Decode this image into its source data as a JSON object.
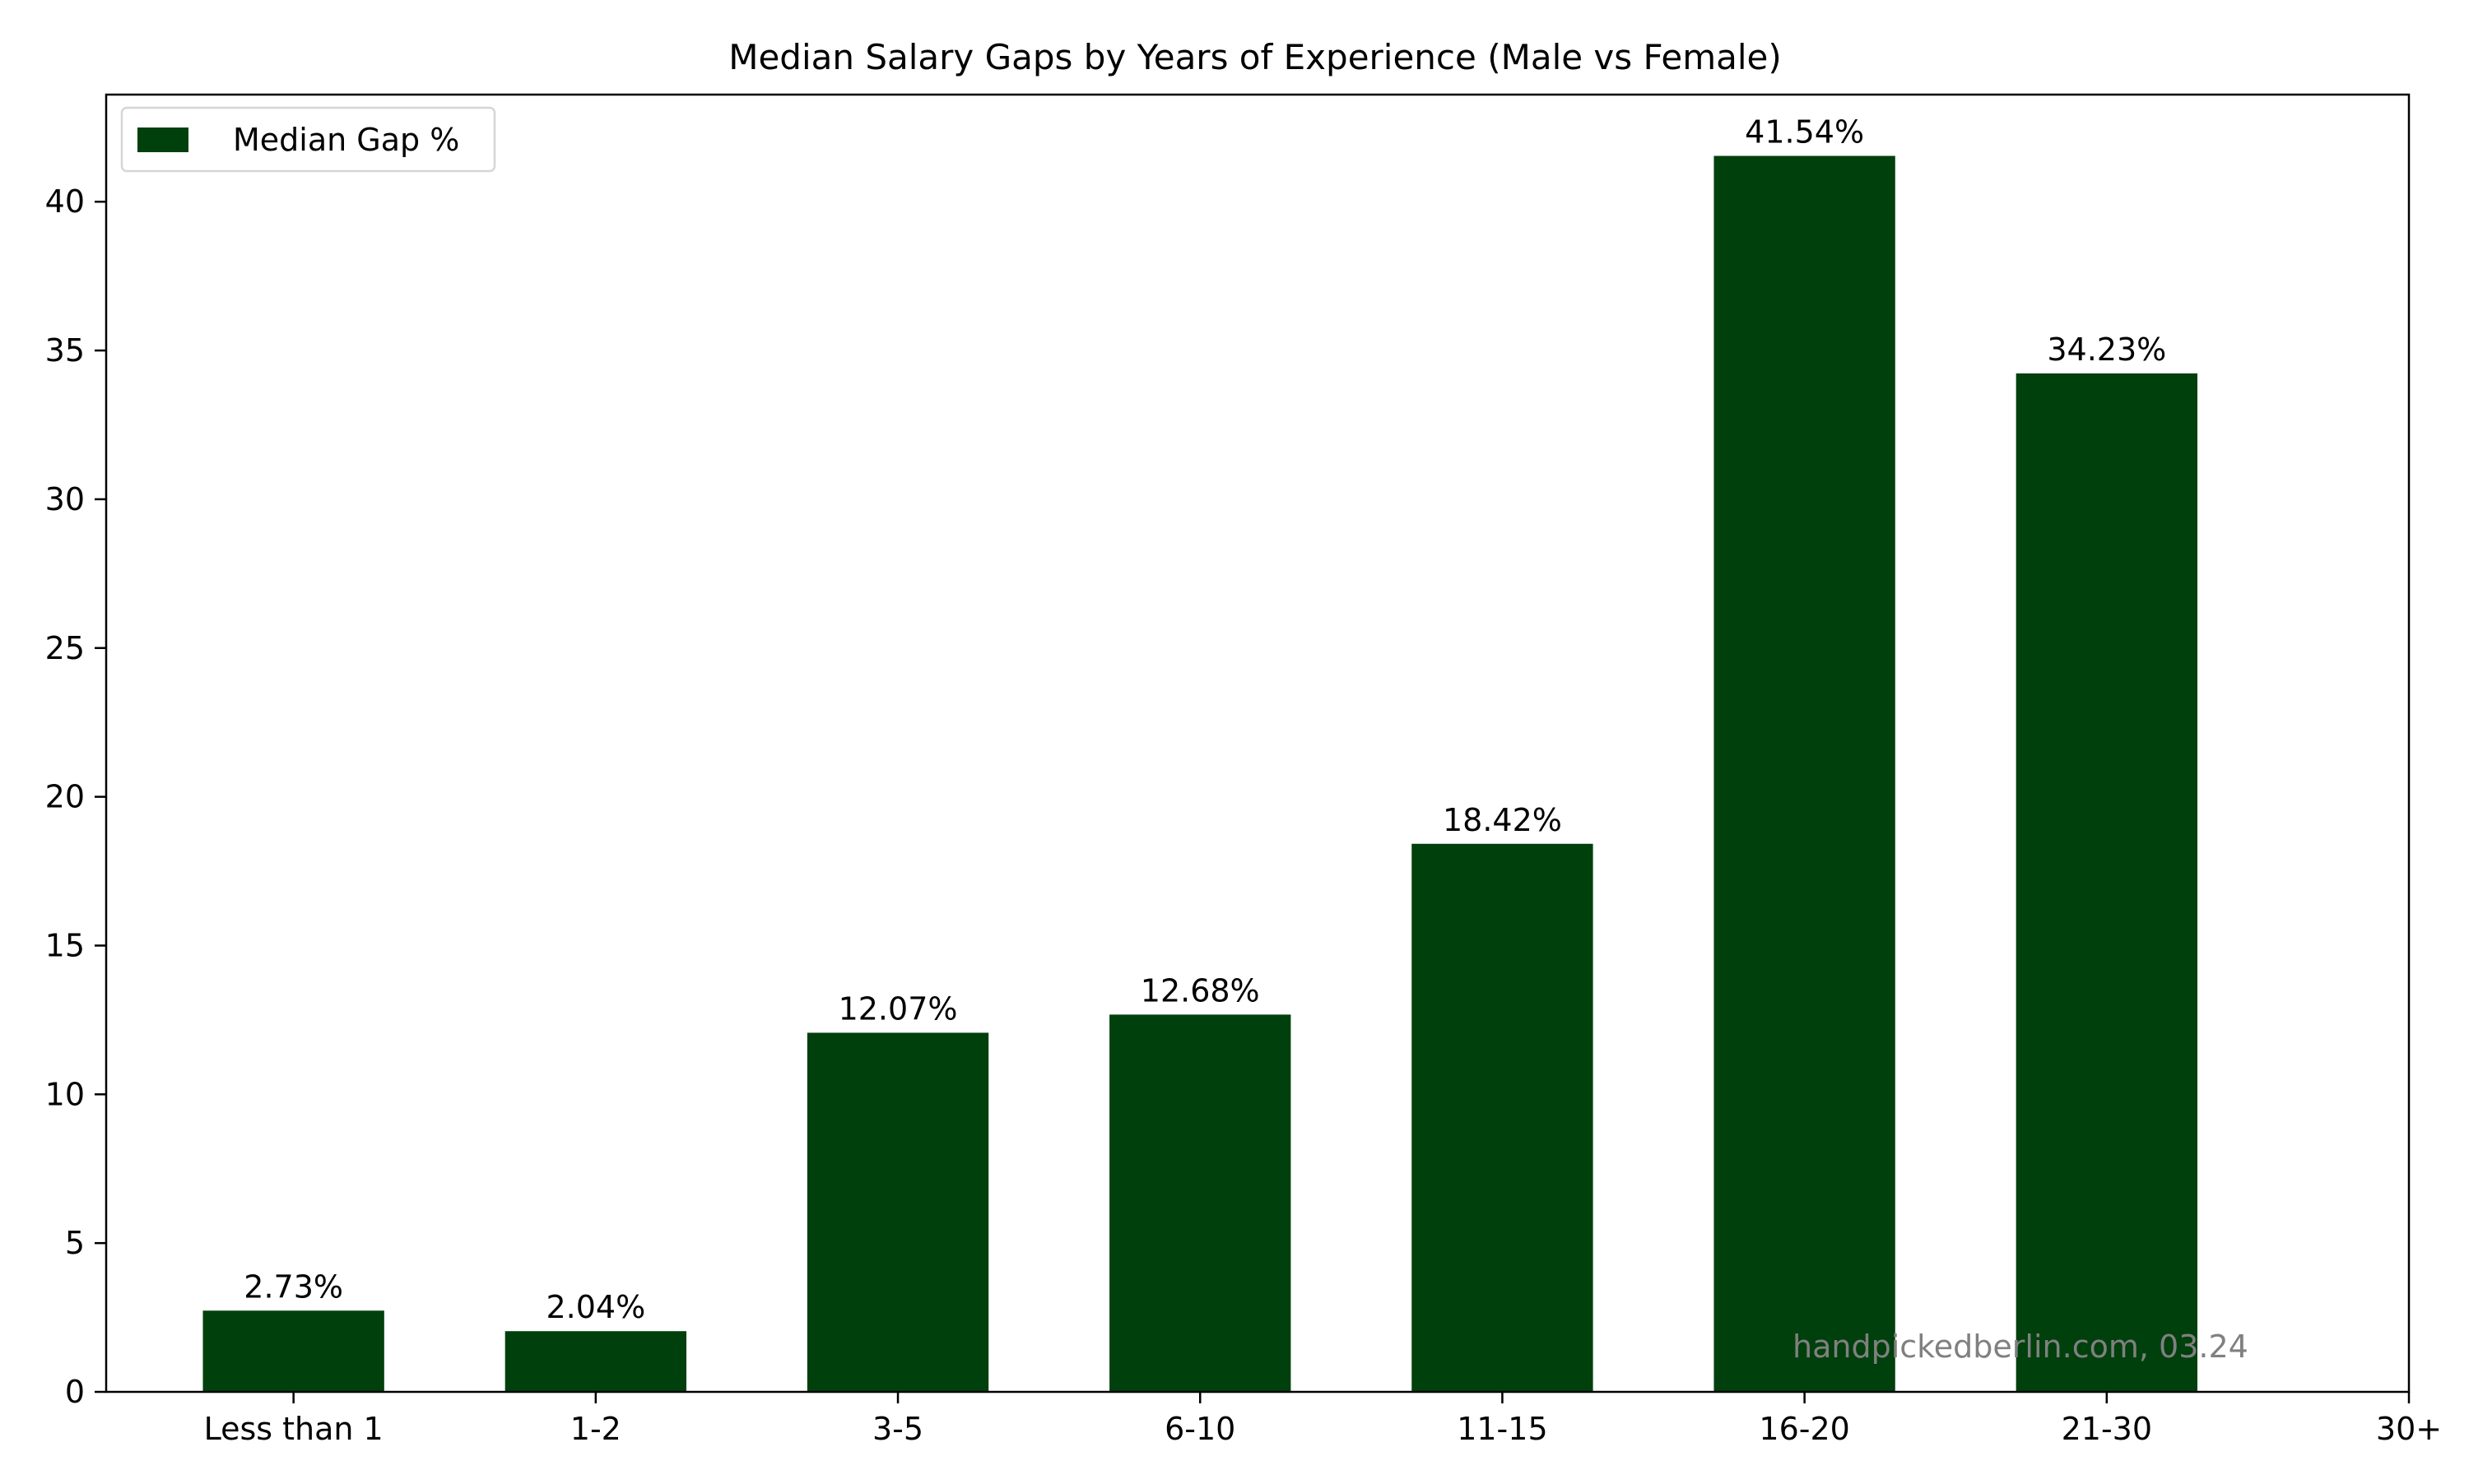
{
  "chart_data": {
    "type": "bar",
    "title": "Median Salary Gaps by Years of Experience (Male vs Female)",
    "xlabel": "",
    "ylabel": "",
    "categories": [
      "Less than 1",
      "1-2",
      "3-5",
      "6-10",
      "11-15",
      "16-20",
      "21-30",
      "30+"
    ],
    "series": [
      {
        "name": "Median Gap %",
        "values": [
          2.73,
          2.04,
          12.07,
          12.68,
          18.42,
          41.54,
          34.23,
          null
        ],
        "color": "#00400c"
      }
    ],
    "data_labels": [
      "2.73%",
      "2.04%",
      "12.07%",
      "12.68%",
      "18.42%",
      "41.54%",
      "34.23%",
      ""
    ],
    "yticks": [
      0,
      5,
      10,
      15,
      20,
      25,
      30,
      35,
      40
    ],
    "ylim": [
      0,
      43.6
    ],
    "grid": false,
    "legend": "top-left",
    "annotation": "handpickedberlin.com, 03.24"
  }
}
